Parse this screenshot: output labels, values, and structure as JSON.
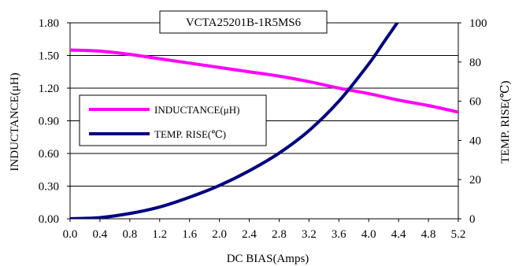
{
  "chart_data": {
    "type": "line",
    "title": "VCTA25201B-1R5MS6",
    "xlabel": "DC BIAS(Amps)",
    "ylabel": "INDUCTANCE(μH)",
    "y2label": "TEMP. RISE(℃)",
    "xlim": [
      0,
      5.2
    ],
    "ylim": [
      0,
      1.8
    ],
    "y2lim": [
      0,
      100
    ],
    "x_ticks": [
      "0.0",
      "0.4",
      "0.8",
      "1.2",
      "1.6",
      "2.0",
      "2.4",
      "2.8",
      "3.2",
      "3.6",
      "4.0",
      "4.4",
      "4.8",
      "5.2"
    ],
    "y_ticks": [
      "0.00",
      "0.30",
      "0.60",
      "0.90",
      "1.20",
      "1.50",
      "1.80"
    ],
    "y2_ticks": [
      "0",
      "20",
      "40",
      "60",
      "80",
      "100"
    ],
    "grid": "horizontal",
    "legend_position": "center-left",
    "series": [
      {
        "name": "INDUCTANCE(μH)",
        "axis": "left",
        "color": "#ff00ff",
        "x": [
          0,
          0.4,
          0.8,
          1.2,
          1.6,
          2.0,
          2.4,
          2.8,
          3.2,
          3.6,
          4.0,
          4.4,
          4.8,
          5.2
        ],
        "values": [
          1.55,
          1.54,
          1.51,
          1.47,
          1.43,
          1.39,
          1.35,
          1.31,
          1.26,
          1.2,
          1.15,
          1.09,
          1.04,
          0.98
        ]
      },
      {
        "name": "TEMP. RISE(℃)",
        "axis": "right",
        "color": "#000080",
        "x": [
          0,
          0.4,
          0.8,
          1.2,
          1.6,
          2.0,
          2.4,
          2.8,
          3.2,
          3.6,
          4.0,
          4.2,
          4.4
        ],
        "values": [
          0,
          0.6,
          2.7,
          6,
          11,
          17,
          24.5,
          33.5,
          45,
          60,
          79,
          90,
          101
        ]
      }
    ]
  }
}
